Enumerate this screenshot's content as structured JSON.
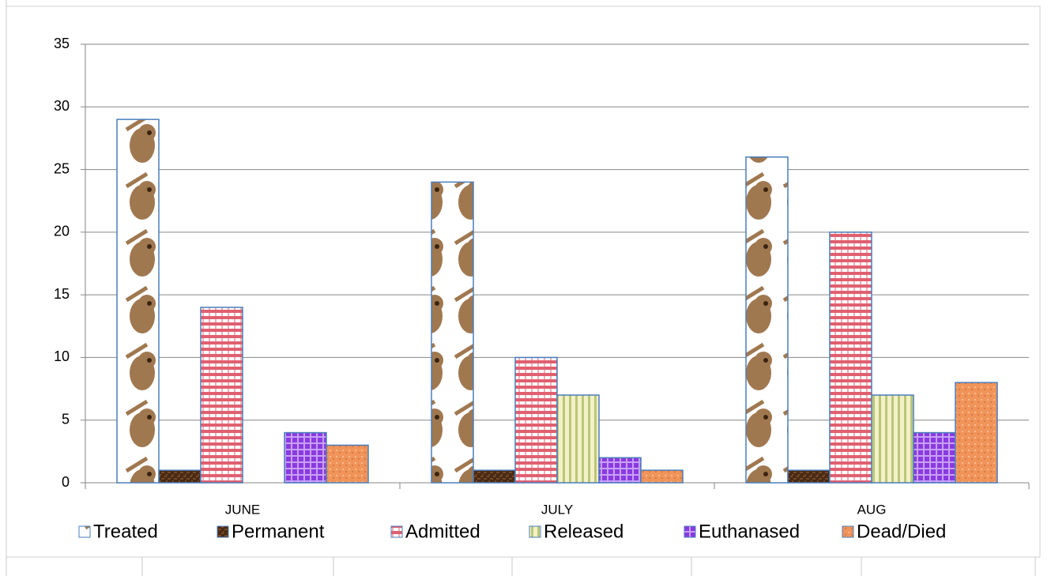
{
  "chart_data": {
    "type": "bar",
    "categories": [
      "JUNE",
      "JULY",
      "AUG"
    ],
    "series": [
      {
        "name": "Treated",
        "color": "#a07850",
        "values": [
          29,
          24,
          26
        ]
      },
      {
        "name": "Permanent",
        "color": "#4a2a14",
        "values": [
          1,
          1,
          1
        ]
      },
      {
        "name": "Admitted",
        "color": "#e06070",
        "values": [
          14,
          10,
          20
        ]
      },
      {
        "name": "Released",
        "color": "#b8c878",
        "values": [
          0,
          7,
          7
        ]
      },
      {
        "name": "Euthanased",
        "color": "#8a3ae0",
        "values": [
          4,
          2,
          4
        ]
      },
      {
        "name": "Dead/Died",
        "color": "#f0945a",
        "values": [
          3,
          1,
          8
        ]
      }
    ],
    "ylim": [
      0,
      35
    ],
    "yticks": [
      0,
      5,
      10,
      15,
      20,
      25,
      30,
      35
    ],
    "grid": true,
    "legend": "bottom"
  }
}
